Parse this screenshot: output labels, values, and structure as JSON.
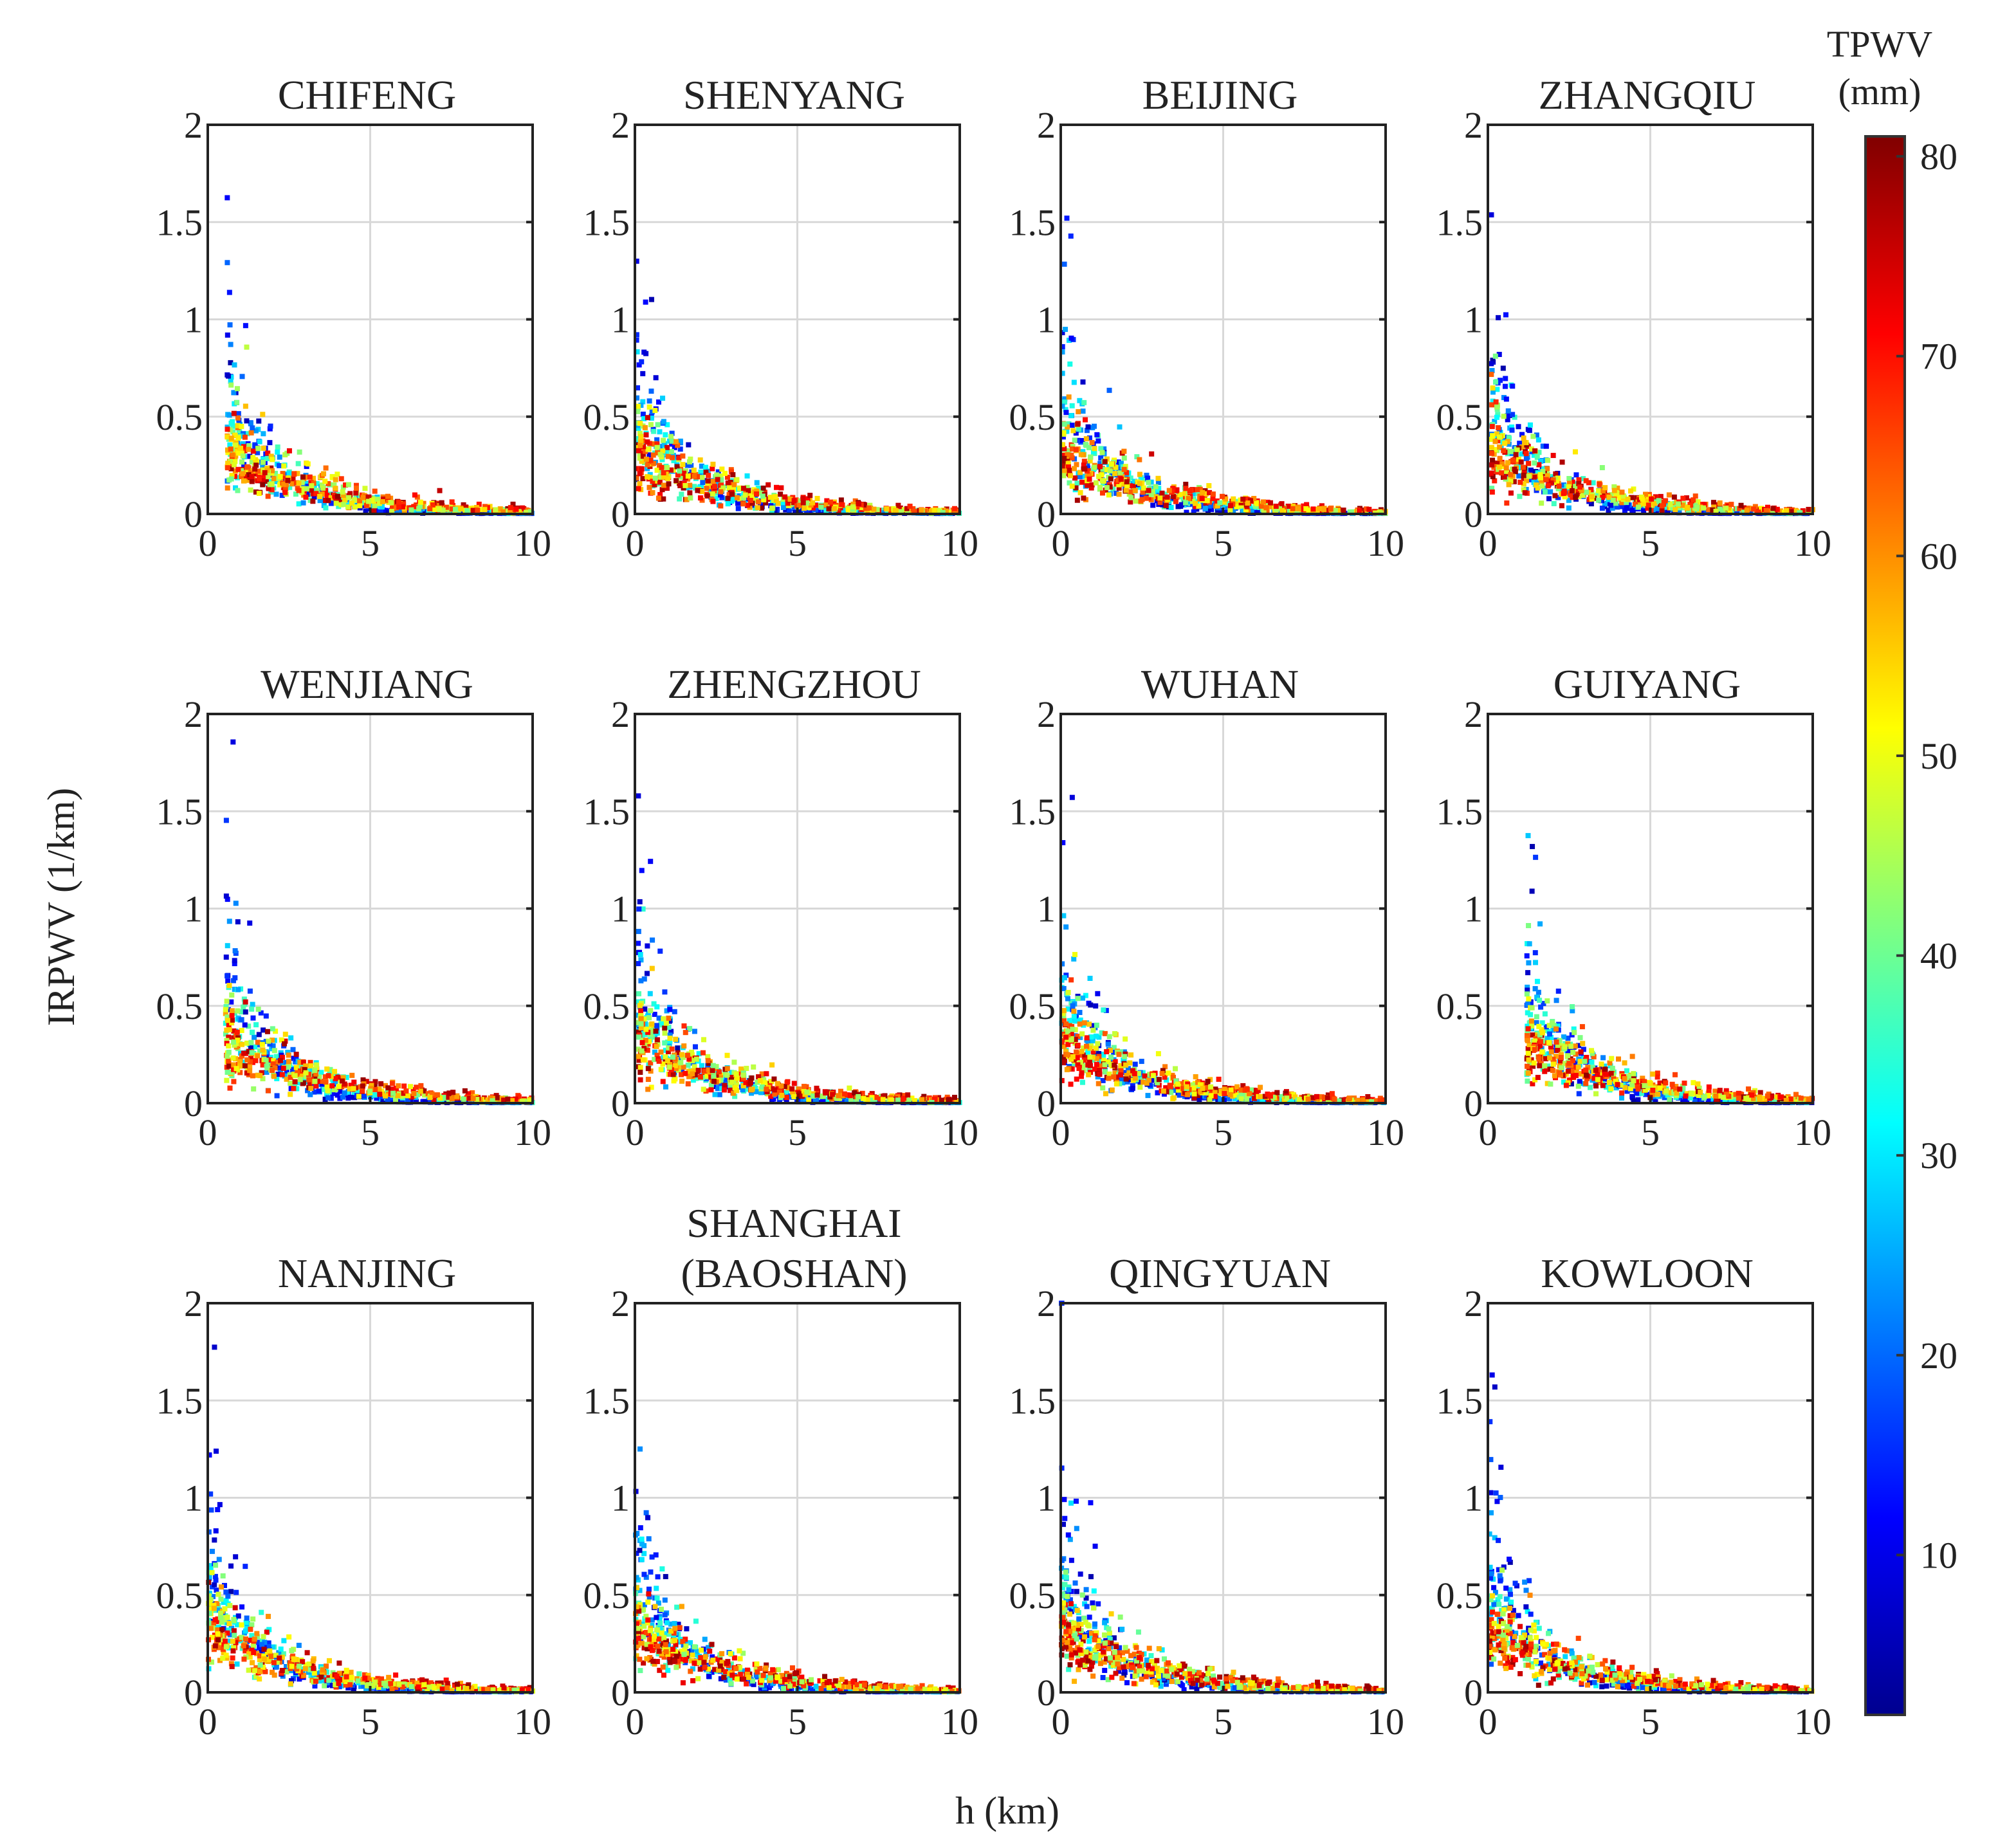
{
  "chart_data": {
    "type": "scatter",
    "xlabel": "h (km)",
    "ylabel": "IRPWV (1/km)",
    "xlim": [
      0,
      10
    ],
    "ylim": [
      0,
      2
    ],
    "xticks": [
      0,
      5,
      10
    ],
    "xtick_labels": [
      "0",
      "5",
      "10"
    ],
    "yticks": [
      0,
      0.5,
      1,
      1.5,
      2
    ],
    "ytick_labels": [
      "0",
      "0.5",
      "1",
      "1.5",
      "2"
    ],
    "grid": true,
    "colorbar": {
      "label_line1": "TPWV",
      "label_line2": "(mm)",
      "range": [
        2,
        81
      ],
      "ticks": [
        10,
        20,
        30,
        40,
        50,
        60,
        70,
        80
      ],
      "tick_labels": [
        "10",
        "20",
        "30",
        "40",
        "50",
        "60",
        "70",
        "80"
      ],
      "colormap": "jet",
      "placement": "right"
    },
    "color_variable": "TPWV (mm)",
    "panels": [
      {
        "title": [
          "CHIFENG"
        ],
        "h_min": 0.6,
        "seed": 11
      },
      {
        "title": [
          "SHENYANG"
        ],
        "h_min": 0.05,
        "seed": 12
      },
      {
        "title": [
          "BEIJING"
        ],
        "h_min": 0.05,
        "seed": 13
      },
      {
        "title": [
          "ZHANGQIU"
        ],
        "h_min": 0.1,
        "seed": 14
      },
      {
        "title": [
          "WENJIANG"
        ],
        "h_min": 0.55,
        "seed": 15
      },
      {
        "title": [
          "ZHENGZHOU"
        ],
        "h_min": 0.1,
        "seed": 16
      },
      {
        "title": [
          "WUHAN"
        ],
        "h_min": 0.03,
        "seed": 17
      },
      {
        "title": [
          "GUIYANG"
        ],
        "h_min": 1.2,
        "seed": 18
      },
      {
        "title": [
          "NANJING"
        ],
        "h_min": 0.02,
        "seed": 19
      },
      {
        "title": [
          "SHANGHAI",
          "(BAOSHAN)"
        ],
        "h_min": 0.02,
        "seed": 20
      },
      {
        "title": [
          "QINGYUAN"
        ],
        "h_min": 0.02,
        "seed": 21
      },
      {
        "title": [
          "KOWLOON"
        ],
        "h_min": 0.05,
        "seed": 22
      }
    ]
  }
}
